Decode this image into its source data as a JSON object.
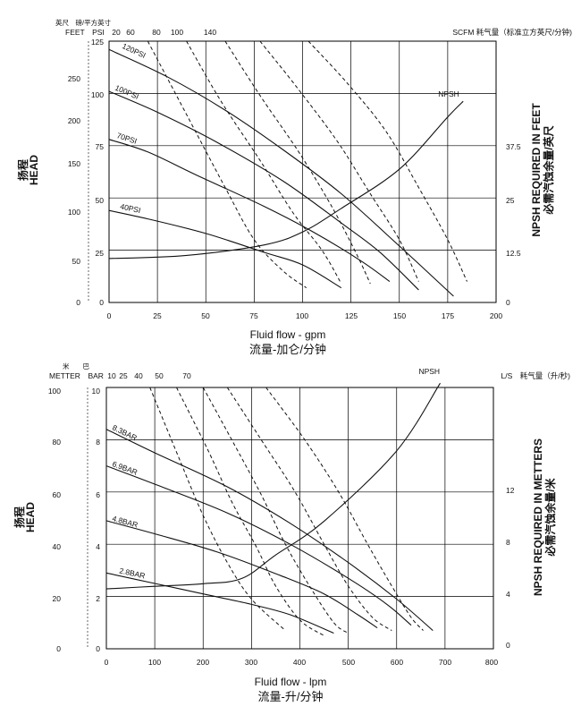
{
  "chart_data": [
    {
      "type": "line",
      "frame": {
        "x_max": 200,
        "y_max": 125
      },
      "top_labels": {
        "unit_zh": "英尺　磅/平方英寸",
        "left": "FEET　PSI",
        "psi_ticks": [
          "20",
          "60",
          "80",
          "100",
          "140"
        ],
        "right": "SCFM 耗气量（标准立方英尺/分钟)"
      },
      "y_ticks_left": [
        "0",
        "50",
        "100",
        "150",
        "200",
        "250"
      ],
      "y_ticks_inner": [
        "0",
        "25",
        "50",
        "75",
        "100",
        "125"
      ],
      "y_ticks_right": [
        "0",
        "12.5",
        "25",
        "37.5"
      ],
      "x_ticks": [
        "0",
        "25",
        "50",
        "75",
        "100",
        "125",
        "150",
        "175",
        "200"
      ],
      "xlabel": "Fluid flow - gpm",
      "xlabel_zh": "流量-加仑/分钟",
      "ylabel_zh": "扬程",
      "ylabel": "HEAD",
      "ylabel_right": "NPSH REQUIRED IN FEET",
      "ylabel_right_zh": "必需汽蚀余量/英尺",
      "pressure_curves": [
        {
          "label": "120PSI",
          "points": [
            [
              0,
              121
            ],
            [
              30,
              108
            ],
            [
              60,
              92
            ],
            [
              90,
              73
            ],
            [
              120,
              52
            ],
            [
              150,
              27
            ],
            [
              178,
              3
            ]
          ]
        },
        {
          "label": "100PSI",
          "points": [
            [
              0,
              101
            ],
            [
              25,
              91
            ],
            [
              55,
              77
            ],
            [
              90,
              58
            ],
            [
              120,
              38
            ],
            [
              140,
              24
            ],
            [
              160,
              6
            ]
          ]
        },
        {
          "label": "70PSI",
          "points": [
            [
              0,
              78
            ],
            [
              20,
              72
            ],
            [
              45,
              61
            ],
            [
              80,
              46
            ],
            [
              105,
              34
            ],
            [
              130,
              20
            ],
            [
              145,
              10
            ]
          ]
        },
        {
          "label": "40PSI",
          "points": [
            [
              0,
              44
            ],
            [
              20,
              40
            ],
            [
              50,
              33
            ],
            [
              80,
              24
            ],
            [
              100,
              18
            ],
            [
              120,
              7
            ]
          ]
        }
      ],
      "air_curves": [
        {
          "points": [
            [
              20,
              125
            ],
            [
              40,
              90
            ],
            [
              60,
              55
            ],
            [
              75,
              30
            ],
            [
              90,
              15
            ],
            [
              102,
              7
            ]
          ]
        },
        {
          "points": [
            [
              40,
              125
            ],
            [
              58,
              96
            ],
            [
              78,
              68
            ],
            [
              95,
              43
            ],
            [
              110,
              25
            ],
            [
              120,
              9
            ]
          ]
        },
        {
          "points": [
            [
              60,
              125
            ],
            [
              78,
              99
            ],
            [
              98,
              72
            ],
            [
              115,
              46
            ],
            [
              128,
              23
            ],
            [
              135,
              9
            ]
          ]
        },
        {
          "points": [
            [
              78,
              125
            ],
            [
              97,
              103
            ],
            [
              118,
              77
            ],
            [
              135,
              52
            ],
            [
              150,
              30
            ],
            [
              160,
              10
            ]
          ]
        },
        {
          "points": [
            [
              103,
              125
            ],
            [
              123,
              105
            ],
            [
              143,
              82
            ],
            [
              160,
              55
            ],
            [
              175,
              30
            ],
            [
              185,
              10
            ]
          ]
        }
      ],
      "npsh": {
        "label": "NPSH",
        "points": [
          [
            0,
            8.4
          ],
          [
            40,
            9
          ],
          [
            80,
            11
          ],
          [
            100,
            13.5
          ],
          [
            120,
            18
          ],
          [
            150,
            25.5
          ],
          [
            175,
            35.5
          ],
          [
            183,
            38.5
          ]
        ]
      }
    },
    {
      "type": "line",
      "frame": {
        "x_max": 800,
        "y_max": 10
      },
      "top_labels": {
        "unit_zh": "米　　巴",
        "left": "METTER　BAR",
        "bar_ticks": [
          "10",
          "25",
          "40",
          "50",
          "70"
        ],
        "right": "L/S　耗气量（升/秒)"
      },
      "y_ticks_left": [
        "0",
        "20",
        "40",
        "60",
        "80",
        "100"
      ],
      "y_ticks_inner": [
        "0",
        "2",
        "4",
        "6",
        "8",
        "10"
      ],
      "y_ticks_right": [
        "0",
        "4",
        "8",
        "12"
      ],
      "x_ticks": [
        "0",
        "100",
        "200",
        "300",
        "400",
        "500",
        "600",
        "700",
        "800"
      ],
      "xlabel": "Fluid flow - lpm",
      "xlabel_zh": "流量-升/分钟",
      "ylabel_zh": "扬程",
      "ylabel": "HEAD",
      "ylabel_right": "NPSH REQUIRED IN METTERS",
      "ylabel_right_zh": "必需汽蚀余量/米",
      "pressure_curves": [
        {
          "label": "8.3BAR",
          "points": [
            [
              0,
              8.4
            ],
            [
              100,
              7.5
            ],
            [
              250,
              6.2
            ],
            [
              380,
              4.8
            ],
            [
              500,
              3.3
            ],
            [
              600,
              1.9
            ],
            [
              675,
              0.7
            ]
          ]
        },
        {
          "label": "6.9BAR",
          "points": [
            [
              0,
              7.0
            ],
            [
              100,
              6.3
            ],
            [
              250,
              5.2
            ],
            [
              380,
              4.0
            ],
            [
              500,
              2.7
            ],
            [
              580,
              1.7
            ],
            [
              630,
              0.9
            ]
          ]
        },
        {
          "label": "4.8BAR",
          "points": [
            [
              0,
              4.9
            ],
            [
              100,
              4.4
            ],
            [
              230,
              3.7
            ],
            [
              360,
              2.8
            ],
            [
              450,
              2.1
            ],
            [
              520,
              1.3
            ],
            [
              560,
              0.8
            ]
          ]
        },
        {
          "label": "2.8BAR",
          "points": [
            [
              0,
              2.9
            ],
            [
              100,
              2.5
            ],
            [
              200,
              2.1
            ],
            [
              300,
              1.7
            ],
            [
              380,
              1.3
            ],
            [
              470,
              0.6
            ]
          ]
        }
      ],
      "air_curves": [
        {
          "points": [
            [
              90,
              10
            ],
            [
              150,
              7.3
            ],
            [
              200,
              5.1
            ],
            [
              250,
              3.3
            ],
            [
              300,
              1.9
            ],
            [
              370,
              0.7
            ]
          ]
        },
        {
          "points": [
            [
              145,
              10
            ],
            [
              210,
              7.6
            ],
            [
              260,
              5.6
            ],
            [
              310,
              3.9
            ],
            [
              350,
              2.4
            ],
            [
              400,
              1.1
            ],
            [
              450,
              0.5
            ]
          ]
        },
        {
          "points": [
            [
              200,
              10
            ],
            [
              265,
              7.8
            ],
            [
              320,
              5.9
            ],
            [
              370,
              4.0
            ],
            [
              420,
              2.4
            ],
            [
              470,
              1.0
            ],
            [
              500,
              0.6
            ]
          ]
        },
        {
          "points": [
            [
              250,
              10
            ],
            [
              320,
              8.0
            ],
            [
              390,
              6.0
            ],
            [
              450,
              4.0
            ],
            [
              500,
              2.4
            ],
            [
              550,
              1.2
            ],
            [
              590,
              0.7
            ]
          ]
        },
        {
          "points": [
            [
              330,
              10
            ],
            [
              410,
              8.0
            ],
            [
              480,
              6.0
            ],
            [
              540,
              4.0
            ],
            [
              590,
              2.4
            ],
            [
              630,
              1.2
            ],
            [
              655,
              0.7
            ]
          ]
        }
      ],
      "npsh": {
        "label": "NPSH",
        "points": [
          [
            0,
            2.3
          ],
          [
            100,
            2.4
          ],
          [
            200,
            2.5
          ],
          [
            280,
            2.7
          ],
          [
            350,
            3.6
          ],
          [
            450,
            4.9
          ],
          [
            600,
            7.6
          ],
          [
            690,
            10.2
          ]
        ]
      }
    }
  ]
}
